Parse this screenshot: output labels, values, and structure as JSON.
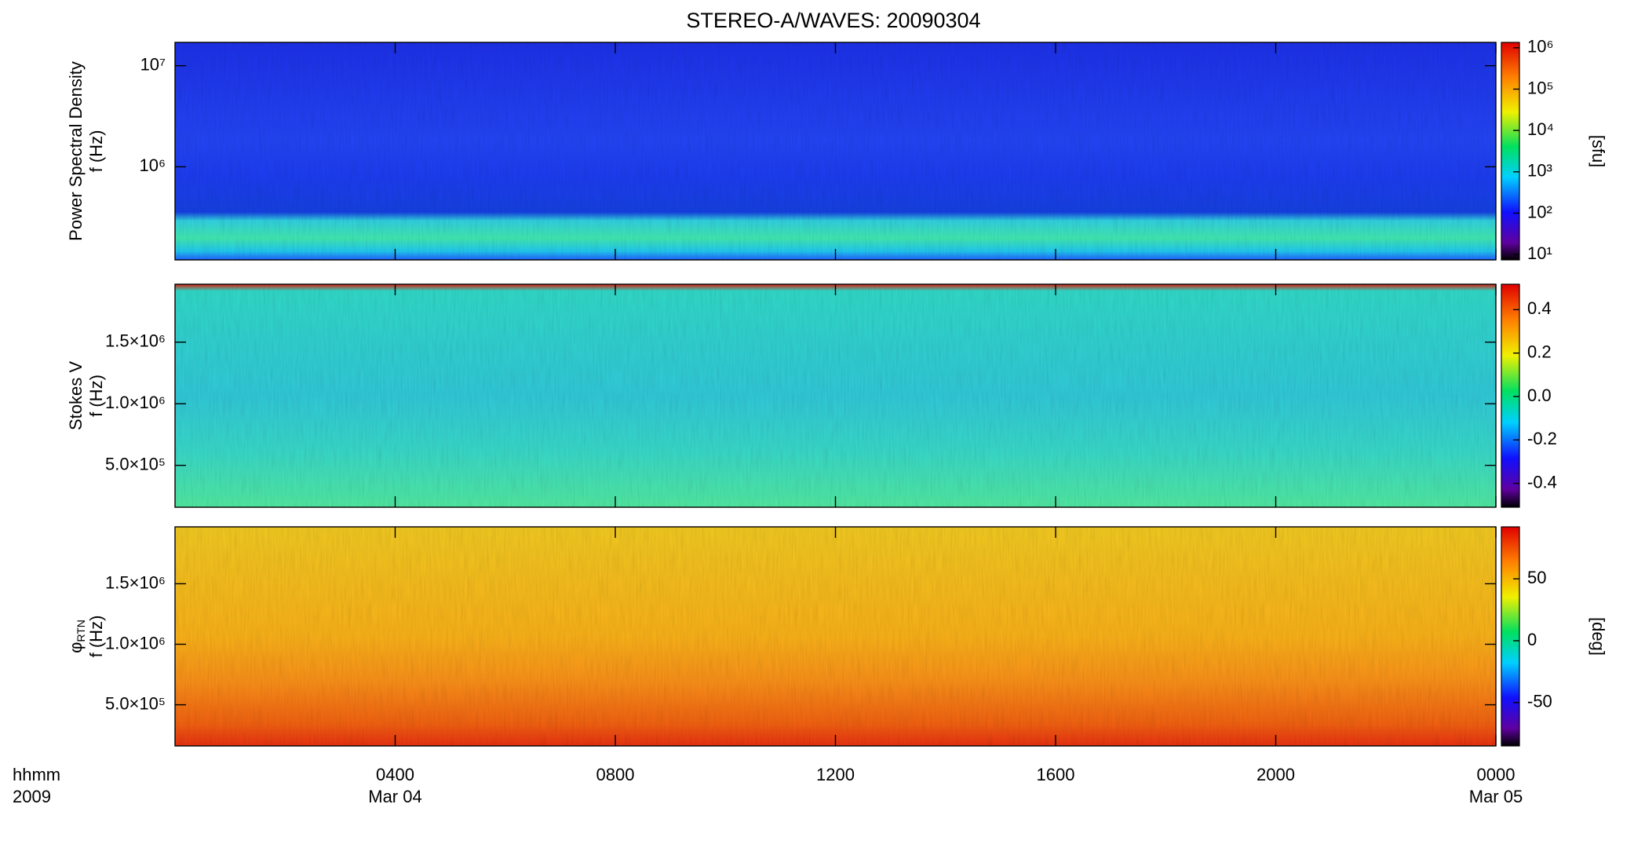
{
  "chart_data": [
    {
      "type": "spectrogram",
      "title": "STEREO-A/WAVES: 20090304",
      "ylabel": [
        "Power Spectral Density",
        "f (Hz)"
      ],
      "xlim": [
        0,
        24
      ],
      "ylim": [
        120000,
        17000000
      ],
      "log_y": true,
      "yticks": [
        {
          "value": 1000000,
          "label": "10⁶"
        },
        {
          "value": 10000000,
          "label": "10⁷"
        }
      ],
      "colorbar": {
        "clim": [
          7.4,
          1350000
        ],
        "log": true,
        "label": "[sfu]",
        "ticks": [
          {
            "value": 10,
            "label": "10¹"
          },
          {
            "value": 100,
            "label": "10²"
          },
          {
            "value": 1000,
            "label": "10³"
          },
          {
            "value": 10000,
            "label": "10⁴"
          },
          {
            "value": 100000,
            "label": "10⁵"
          },
          {
            "value": 1000000,
            "label": "10⁶"
          }
        ]
      }
    },
    {
      "type": "spectrogram",
      "ylabel": [
        "Stokes V",
        "f (Hz)"
      ],
      "xlim": [
        0,
        24
      ],
      "ylim": [
        160000,
        1970000
      ],
      "log_y": false,
      "yticks": [
        {
          "value": 500000,
          "label": "5.0×10⁵"
        },
        {
          "value": 1000000,
          "label": "1.0×10⁶"
        },
        {
          "value": 1500000,
          "label": "1.5×10⁶"
        }
      ],
      "colorbar": {
        "clim": [
          -0.51,
          0.517
        ],
        "log": false,
        "ticks": [
          -0.4,
          -0.2,
          {
            "value": 0,
            "label": "0.0"
          },
          0.2,
          0.4
        ]
      }
    },
    {
      "type": "spectrogram",
      "ylabel": [
        "φ",
        "f (Hz)"
      ],
      "ylabel_sub": "RTN",
      "xlim": [
        0,
        24
      ],
      "ylim": [
        160000,
        1970000
      ],
      "log_y": false,
      "yticks": [
        {
          "value": 500000,
          "label": "5.0×10⁵"
        },
        {
          "value": 1000000,
          "label": "1.0×10⁶"
        },
        {
          "value": 1500000,
          "label": "1.5×10⁶"
        }
      ],
      "colorbar": {
        "clim": [
          -85,
          92
        ],
        "log": false,
        "label": "[deg]",
        "ticks": [
          -50,
          0,
          50
        ]
      },
      "xlabel": "hhmm",
      "xyear": "2009",
      "xticks": [
        {
          "value": 4,
          "label": "0400"
        },
        {
          "value": 8,
          "label": "0800"
        },
        {
          "value": 12,
          "label": "1200"
        },
        {
          "value": 16,
          "label": "1600"
        },
        {
          "value": 20,
          "label": "2000"
        },
        {
          "value": 24,
          "label": "0000"
        }
      ],
      "xdates": [
        {
          "value": 4,
          "label": "Mar 04"
        },
        {
          "value": 24,
          "label": "Mar 05"
        }
      ]
    }
  ]
}
